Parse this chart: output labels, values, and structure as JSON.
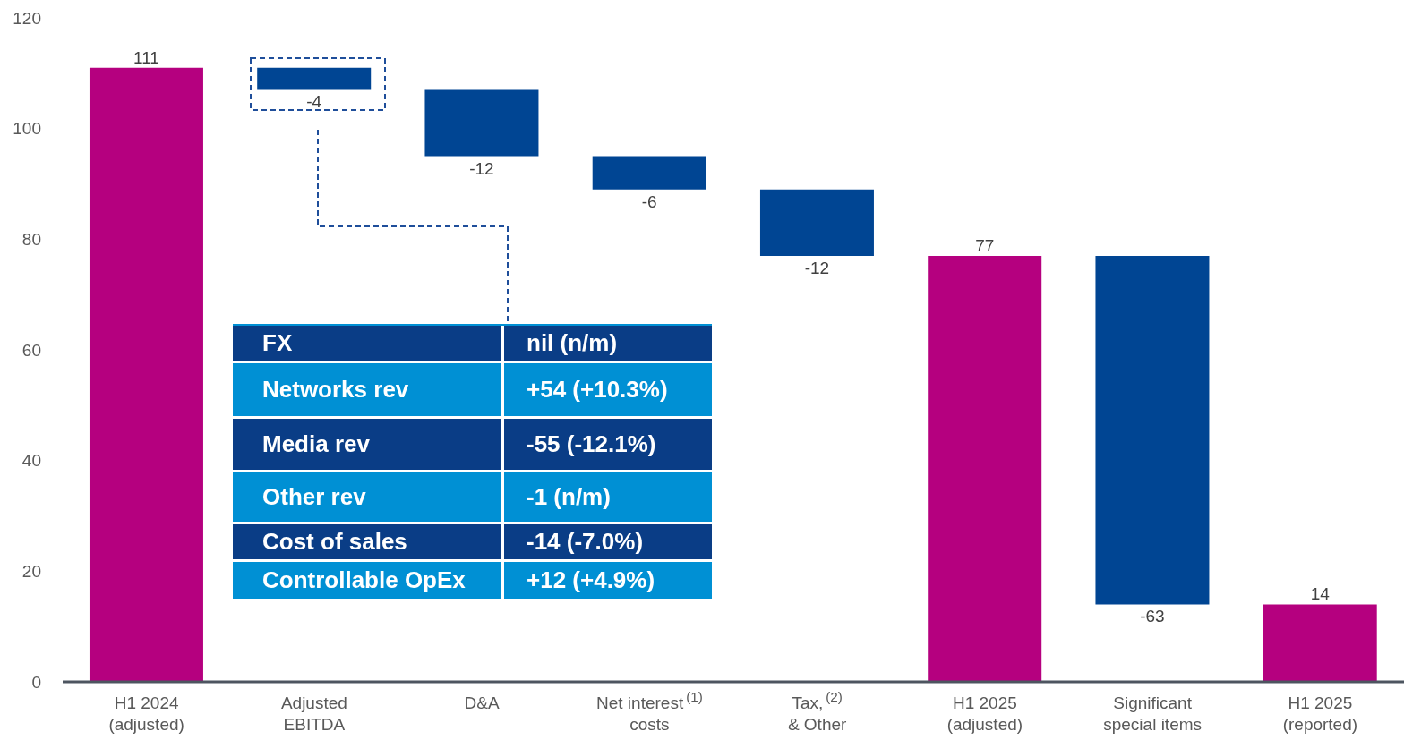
{
  "chart_data": {
    "type": "bar",
    "categories": [
      "H1 2024\n(adjusted)",
      "Adjusted\nEBITDA",
      "D&A",
      "Net interest$^{(1)}$\ncosts",
      "Tax,$^{(2)}$\n& Other",
      "H1 2025\n(adjusted)",
      "Significant\nspecial items",
      "H1 2025\n(reported)"
    ],
    "values": [
      111,
      -4,
      -12,
      -6,
      -12,
      77,
      -63,
      14
    ],
    "base": [
      0,
      111,
      107,
      95,
      89,
      0,
      77,
      0
    ],
    "colors": [
      "#b5007f",
      "#004593",
      "#004593",
      "#004593",
      "#004593",
      "#b5007f",
      "#004593",
      "#b5007f"
    ],
    "data_labels": true,
    "ylim": [
      0,
      120
    ],
    "yticks": [
      0,
      20,
      40,
      60,
      80,
      100,
      120
    ],
    "grid": false,
    "legend": false,
    "annotations": [
      "FX",
      "nil (n/m)",
      "Networks rev",
      "+54 (+10.3%)",
      "Media rev",
      "-55 (-12.1%)",
      "Other rev",
      "-1 (n/m)",
      "Cost of sales",
      "-14 (-7.0%)",
      "Controllable OpEx",
      "+12 (+4.9%)"
    ]
  }
}
